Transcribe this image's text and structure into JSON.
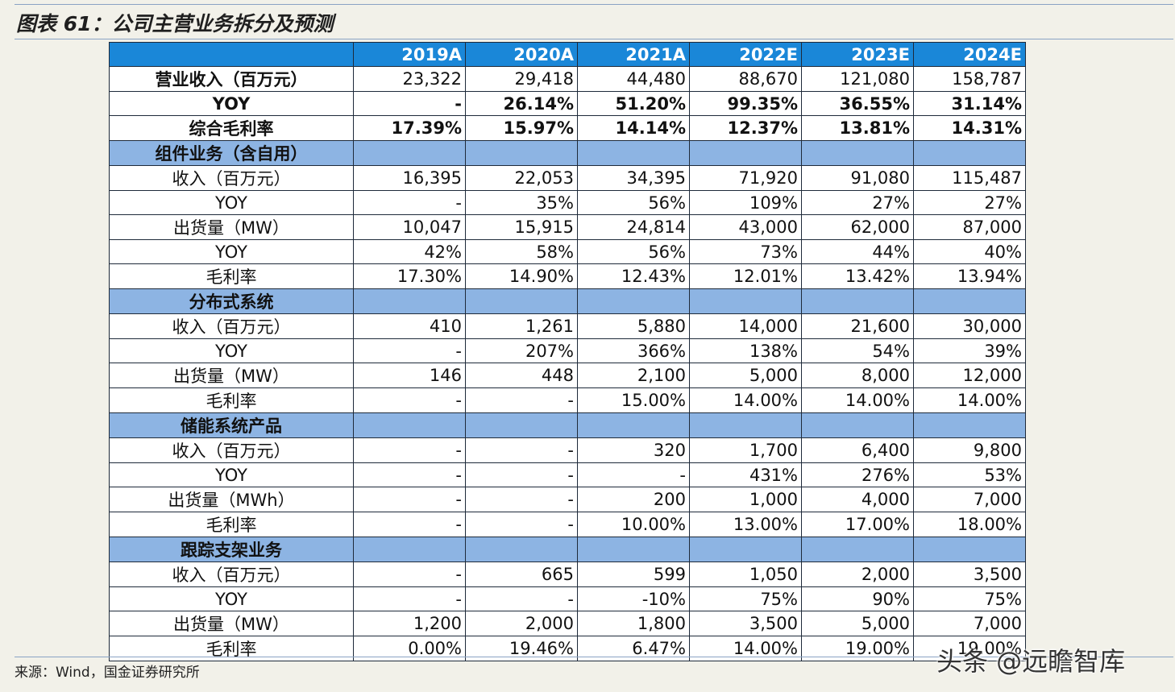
{
  "title": "图表 61：公司主营业务拆分及预测",
  "columns": [
    "",
    "2019A",
    "2020A",
    "2021A",
    "2022E",
    "2023E",
    "2024E"
  ],
  "rows": [
    {
      "type": "bold",
      "label": "营业收入（百万元）",
      "values": [
        "23,322",
        "29,418",
        "44,480",
        "88,670",
        "121,080",
        "158,787"
      ],
      "bold_values": false
    },
    {
      "type": "bold",
      "label": "YOY",
      "values": [
        "-",
        "26.14%",
        "51.20%",
        "99.35%",
        "36.55%",
        "31.14%"
      ],
      "bold_values": true
    },
    {
      "type": "bold",
      "label": "综合毛利率",
      "values": [
        "17.39%",
        "15.97%",
        "14.14%",
        "12.37%",
        "13.81%",
        "14.31%"
      ],
      "bold_values": true
    },
    {
      "type": "section",
      "label": "组件业务（含自用）",
      "values": [
        "",
        "",
        "",
        "",
        "",
        ""
      ]
    },
    {
      "type": "data",
      "label": "收入（百万元）",
      "values": [
        "16,395",
        "22,053",
        "34,395",
        "71,920",
        "91,080",
        "115,487"
      ]
    },
    {
      "type": "data",
      "label": "YOY",
      "values": [
        "-",
        "35%",
        "56%",
        "109%",
        "27%",
        "27%"
      ]
    },
    {
      "type": "data",
      "label": "出货量（MW）",
      "values": [
        "10,047",
        "15,915",
        "24,814",
        "43,000",
        "62,000",
        "87,000"
      ]
    },
    {
      "type": "data",
      "label": "YOY",
      "values": [
        "42%",
        "58%",
        "56%",
        "73%",
        "44%",
        "40%"
      ]
    },
    {
      "type": "data",
      "label": "毛利率",
      "values": [
        "17.30%",
        "14.90%",
        "12.43%",
        "12.01%",
        "13.42%",
        "13.94%"
      ]
    },
    {
      "type": "section",
      "label": "分布式系统",
      "values": [
        "",
        "",
        "",
        "",
        "",
        ""
      ]
    },
    {
      "type": "data",
      "label": "收入（百万元）",
      "values": [
        "410",
        "1,261",
        "5,880",
        "14,000",
        "21,600",
        "30,000"
      ]
    },
    {
      "type": "data",
      "label": "YOY",
      "values": [
        "-",
        "207%",
        "366%",
        "138%",
        "54%",
        "39%"
      ]
    },
    {
      "type": "data",
      "label": "出货量（MW）",
      "values": [
        "146",
        "448",
        "2,100",
        "5,000",
        "8,000",
        "12,000"
      ]
    },
    {
      "type": "data",
      "label": "毛利率",
      "values": [
        "-",
        "-",
        "15.00%",
        "14.00%",
        "14.00%",
        "14.00%"
      ]
    },
    {
      "type": "section",
      "label": "储能系统产品",
      "values": [
        "",
        "",
        "",
        "",
        "",
        ""
      ]
    },
    {
      "type": "data",
      "label": "收入（百万元）",
      "values": [
        "-",
        "-",
        "320",
        "1,700",
        "6,400",
        "9,800"
      ]
    },
    {
      "type": "data",
      "label": "YOY",
      "values": [
        "-",
        "-",
        "-",
        "431%",
        "276%",
        "53%"
      ]
    },
    {
      "type": "data",
      "label": "出货量（MWh）",
      "values": [
        "-",
        "-",
        "200",
        "1,000",
        "4,000",
        "7,000"
      ]
    },
    {
      "type": "data",
      "label": "毛利率",
      "values": [
        "-",
        "-",
        "10.00%",
        "13.00%",
        "17.00%",
        "18.00%"
      ]
    },
    {
      "type": "section",
      "label": "跟踪支架业务",
      "values": [
        "",
        "",
        "",
        "",
        "",
        ""
      ]
    },
    {
      "type": "data",
      "label": "收入（百万元）",
      "values": [
        "-",
        "665",
        "599",
        "1,050",
        "2,000",
        "3,500"
      ]
    },
    {
      "type": "data",
      "label": "YOY",
      "values": [
        "-",
        "-",
        "-10%",
        "75%",
        "90%",
        "75%"
      ]
    },
    {
      "type": "data",
      "label": "出货量（MW）",
      "values": [
        "1,200",
        "2,000",
        "1,800",
        "3,500",
        "5,000",
        "7,000"
      ]
    },
    {
      "type": "data",
      "label": "毛利率",
      "values": [
        "0.00%",
        "19.46%",
        "6.47%",
        "14.00%",
        "19.00%",
        "19.00%"
      ]
    }
  ],
  "source": "来源：Wind，国金证券研究所",
  "watermark": "头条 @远瞻智库"
}
